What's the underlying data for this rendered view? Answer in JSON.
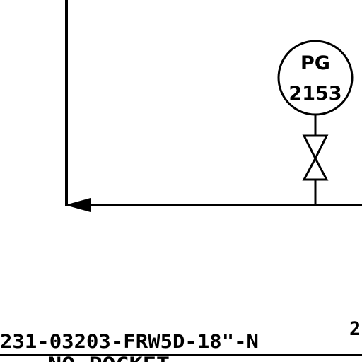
{
  "instrument": {
    "type_code": "PG",
    "number": "2153"
  },
  "line_labels": {
    "main": "231-03203-FRW5D-18\"-N",
    "right_partial": "2",
    "below_partial": "NO POCKET"
  }
}
